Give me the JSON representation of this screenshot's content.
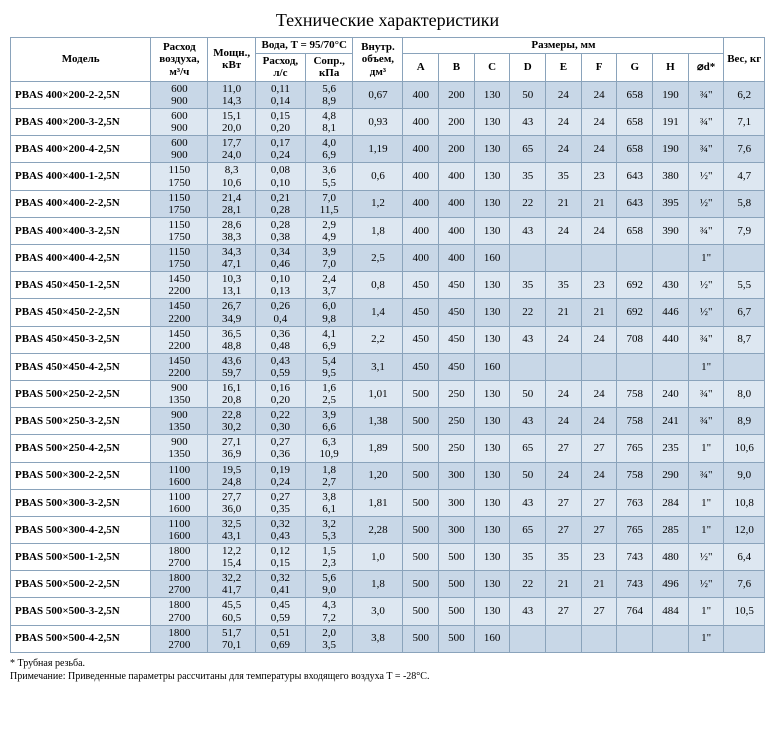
{
  "title": "Технические характеристики",
  "headers": {
    "model": "Модель",
    "airflow": "Расход воздуха,",
    "airflow_unit": "м³/ч",
    "power": "Мощн., кВт",
    "water": "Вода, T = 95/70°C",
    "flow": "Расход, л/с",
    "pres": "Сопр., кПа",
    "volume": "Внутр. объем,",
    "volume_unit": "дм³",
    "dims": "Размеры, мм",
    "A": "A",
    "B": "B",
    "C": "C",
    "D": "D",
    "E": "E",
    "F": "F",
    "G": "G",
    "H": "H",
    "d": "⌀d*",
    "weight": "Вес, кг"
  },
  "footnote1": "* Трубная резьба.",
  "footnote2": "Примечание: Приведенные параметры рассчитаны для температуры входящего воздуха T = -28°C.",
  "rows": [
    {
      "model": "PBAS 400×200-2-2,5N",
      "air": [
        "600",
        "900"
      ],
      "pow": [
        "11,0",
        "14,3"
      ],
      "flow": [
        "0,11",
        "0,14"
      ],
      "pres": [
        "5,6",
        "8,9"
      ],
      "vol": "0,67",
      "A": "400",
      "B": "200",
      "C": "130",
      "D": "50",
      "E": "24",
      "F": "24",
      "G": "658",
      "H": "190",
      "d": "¾\"",
      "w": "6,2"
    },
    {
      "model": "PBAS 400×200-3-2,5N",
      "air": [
        "600",
        "900"
      ],
      "pow": [
        "15,1",
        "20,0"
      ],
      "flow": [
        "0,15",
        "0,20"
      ],
      "pres": [
        "4,8",
        "8,1"
      ],
      "vol": "0,93",
      "A": "400",
      "B": "200",
      "C": "130",
      "D": "43",
      "E": "24",
      "F": "24",
      "G": "658",
      "H": "191",
      "d": "¾\"",
      "w": "7,1"
    },
    {
      "model": "PBAS 400×200-4-2,5N",
      "air": [
        "600",
        "900"
      ],
      "pow": [
        "17,7",
        "24,0"
      ],
      "flow": [
        "0,17",
        "0,24"
      ],
      "pres": [
        "4,0",
        "6,9"
      ],
      "vol": "1,19",
      "A": "400",
      "B": "200",
      "C": "130",
      "D": "65",
      "E": "24",
      "F": "24",
      "G": "658",
      "H": "190",
      "d": "¾\"",
      "w": "7,6"
    },
    {
      "model": "PBAS 400×400-1-2,5N",
      "air": [
        "1150",
        "1750"
      ],
      "pow": [
        "8,3",
        "10,6"
      ],
      "flow": [
        "0,08",
        "0,10"
      ],
      "pres": [
        "3,6",
        "5,5"
      ],
      "vol": "0,6",
      "A": "400",
      "B": "400",
      "C": "130",
      "D": "35",
      "E": "35",
      "F": "23",
      "G": "643",
      "H": "380",
      "d": "½\"",
      "w": "4,7"
    },
    {
      "model": "PBAS 400×400-2-2,5N",
      "air": [
        "1150",
        "1750"
      ],
      "pow": [
        "21,4",
        "28,1"
      ],
      "flow": [
        "0,21",
        "0,28"
      ],
      "pres": [
        "7,0",
        "11,5"
      ],
      "vol": "1,2",
      "A": "400",
      "B": "400",
      "C": "130",
      "D": "22",
      "E": "21",
      "F": "21",
      "G": "643",
      "H": "395",
      "d": "½\"",
      "w": "5,8"
    },
    {
      "model": "PBAS 400×400-3-2,5N",
      "air": [
        "1150",
        "1750"
      ],
      "pow": [
        "28,6",
        "38,3"
      ],
      "flow": [
        "0,28",
        "0,38"
      ],
      "pres": [
        "2,9",
        "4,9"
      ],
      "vol": "1,8",
      "A": "400",
      "B": "400",
      "C": "130",
      "D": "43",
      "E": "24",
      "F": "24",
      "G": "658",
      "H": "390",
      "d": "¾\"",
      "w": "7,9"
    },
    {
      "model": "PBAS 400×400-4-2,5N",
      "air": [
        "1150",
        "1750"
      ],
      "pow": [
        "34,3",
        "47,1"
      ],
      "flow": [
        "0,34",
        "0,46"
      ],
      "pres": [
        "3,9",
        "7,0"
      ],
      "vol": "2,5",
      "A": "400",
      "B": "400",
      "C": "160",
      "D": "",
      "E": "",
      "F": "",
      "G": "",
      "H": "",
      "d": "1\"",
      "w": ""
    },
    {
      "model": "PBAS 450×450-1-2,5N",
      "air": [
        "1450",
        "2200"
      ],
      "pow": [
        "10,3",
        "13,1"
      ],
      "flow": [
        "0,10",
        "0,13"
      ],
      "pres": [
        "2,4",
        "3,7"
      ],
      "vol": "0,8",
      "A": "450",
      "B": "450",
      "C": "130",
      "D": "35",
      "E": "35",
      "F": "23",
      "G": "692",
      "H": "430",
      "d": "½\"",
      "w": "5,5"
    },
    {
      "model": "PBAS 450×450-2-2,5N",
      "air": [
        "1450",
        "2200"
      ],
      "pow": [
        "26,7",
        "34,9"
      ],
      "flow": [
        "0,26",
        "0,4"
      ],
      "pres": [
        "6,0",
        "9,8"
      ],
      "vol": "1,4",
      "A": "450",
      "B": "450",
      "C": "130",
      "D": "22",
      "E": "21",
      "F": "21",
      "G": "692",
      "H": "446",
      "d": "½\"",
      "w": "6,7"
    },
    {
      "model": "PBAS 450×450-3-2,5N",
      "air": [
        "1450",
        "2200"
      ],
      "pow": [
        "36,5",
        "48,8"
      ],
      "flow": [
        "0,36",
        "0,48"
      ],
      "pres": [
        "4,1",
        "6,9"
      ],
      "vol": "2,2",
      "A": "450",
      "B": "450",
      "C": "130",
      "D": "43",
      "E": "24",
      "F": "24",
      "G": "708",
      "H": "440",
      "d": "¾\"",
      "w": "8,7"
    },
    {
      "model": "PBAS 450×450-4-2,5N",
      "air": [
        "1450",
        "2200"
      ],
      "pow": [
        "43,6",
        "59,7"
      ],
      "flow": [
        "0,43",
        "0,59"
      ],
      "pres": [
        "5,4",
        "9,5"
      ],
      "vol": "3,1",
      "A": "450",
      "B": "450",
      "C": "160",
      "D": "",
      "E": "",
      "F": "",
      "G": "",
      "H": "",
      "d": "1\"",
      "w": ""
    },
    {
      "model": "PBAS 500×250-2-2,5N",
      "air": [
        "900",
        "1350"
      ],
      "pow": [
        "16,1",
        "20,8"
      ],
      "flow": [
        "0,16",
        "0,20"
      ],
      "pres": [
        "1,6",
        "2,5"
      ],
      "vol": "1,01",
      "A": "500",
      "B": "250",
      "C": "130",
      "D": "50",
      "E": "24",
      "F": "24",
      "G": "758",
      "H": "240",
      "d": "¾\"",
      "w": "8,0"
    },
    {
      "model": "PBAS 500×250-3-2,5N",
      "air": [
        "900",
        "1350"
      ],
      "pow": [
        "22,8",
        "30,2"
      ],
      "flow": [
        "0,22",
        "0,30"
      ],
      "pres": [
        "3,9",
        "6,6"
      ],
      "vol": "1,38",
      "A": "500",
      "B": "250",
      "C": "130",
      "D": "43",
      "E": "24",
      "F": "24",
      "G": "758",
      "H": "241",
      "d": "¾\"",
      "w": "8,9"
    },
    {
      "model": "PBAS 500×250-4-2,5N",
      "air": [
        "900",
        "1350"
      ],
      "pow": [
        "27,1",
        "36,9"
      ],
      "flow": [
        "0,27",
        "0,36"
      ],
      "pres": [
        "6,3",
        "10,9"
      ],
      "vol": "1,89",
      "A": "500",
      "B": "250",
      "C": "130",
      "D": "65",
      "E": "27",
      "F": "27",
      "G": "765",
      "H": "235",
      "d": "1\"",
      "w": "10,6"
    },
    {
      "model": "PBAS 500×300-2-2,5N",
      "air": [
        "1100",
        "1600"
      ],
      "pow": [
        "19,5",
        "24,8"
      ],
      "flow": [
        "0,19",
        "0,24"
      ],
      "pres": [
        "1,8",
        "2,7"
      ],
      "vol": "1,20",
      "A": "500",
      "B": "300",
      "C": "130",
      "D": "50",
      "E": "24",
      "F": "24",
      "G": "758",
      "H": "290",
      "d": "¾\"",
      "w": "9,0"
    },
    {
      "model": "PBAS 500×300-3-2,5N",
      "air": [
        "1100",
        "1600"
      ],
      "pow": [
        "27,7",
        "36,0"
      ],
      "flow": [
        "0,27",
        "0,35"
      ],
      "pres": [
        "3,8",
        "6,1"
      ],
      "vol": "1,81",
      "A": "500",
      "B": "300",
      "C": "130",
      "D": "43",
      "E": "27",
      "F": "27",
      "G": "763",
      "H": "284",
      "d": "1\"",
      "w": "10,8"
    },
    {
      "model": "PBAS 500×300-4-2,5N",
      "air": [
        "1100",
        "1600"
      ],
      "pow": [
        "32,5",
        "43,1"
      ],
      "flow": [
        "0,32",
        "0,43"
      ],
      "pres": [
        "3,2",
        "5,3"
      ],
      "vol": "2,28",
      "A": "500",
      "B": "300",
      "C": "130",
      "D": "65",
      "E": "27",
      "F": "27",
      "G": "765",
      "H": "285",
      "d": "1\"",
      "w": "12,0"
    },
    {
      "model": "PBAS 500×500-1-2,5N",
      "air": [
        "1800",
        "2700"
      ],
      "pow": [
        "12,2",
        "15,4"
      ],
      "flow": [
        "0,12",
        "0,15"
      ],
      "pres": [
        "1,5",
        "2,3"
      ],
      "vol": "1,0",
      "A": "500",
      "B": "500",
      "C": "130",
      "D": "35",
      "E": "35",
      "F": "23",
      "G": "743",
      "H": "480",
      "d": "½\"",
      "w": "6,4"
    },
    {
      "model": "PBAS 500×500-2-2,5N",
      "air": [
        "1800",
        "2700"
      ],
      "pow": [
        "32,2",
        "41,7"
      ],
      "flow": [
        "0,32",
        "0,41"
      ],
      "pres": [
        "5,6",
        "9,0"
      ],
      "vol": "1,8",
      "A": "500",
      "B": "500",
      "C": "130",
      "D": "22",
      "E": "21",
      "F": "21",
      "G": "743",
      "H": "496",
      "d": "½\"",
      "w": "7,6"
    },
    {
      "model": "PBAS 500×500-3-2,5N",
      "air": [
        "1800",
        "2700"
      ],
      "pow": [
        "45,5",
        "60,5"
      ],
      "flow": [
        "0,45",
        "0,59"
      ],
      "pres": [
        "4,3",
        "7,2"
      ],
      "vol": "3,0",
      "A": "500",
      "B": "500",
      "C": "130",
      "D": "43",
      "E": "27",
      "F": "27",
      "G": "764",
      "H": "484",
      "d": "1\"",
      "w": "10,5"
    },
    {
      "model": "PBAS 500×500-4-2,5N",
      "air": [
        "1800",
        "2700"
      ],
      "pow": [
        "51,7",
        "70,1"
      ],
      "flow": [
        "0,51",
        "0,69"
      ],
      "pres": [
        "2,0",
        "3,5"
      ],
      "vol": "3,8",
      "A": "500",
      "B": "500",
      "C": "160",
      "D": "",
      "E": "",
      "F": "",
      "G": "",
      "H": "",
      "d": "1\"",
      "w": ""
    }
  ]
}
